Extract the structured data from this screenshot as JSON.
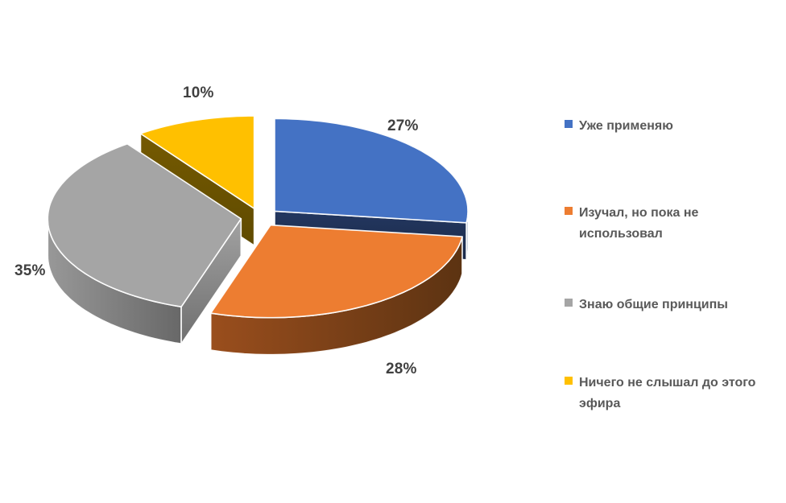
{
  "page": {
    "background": "#FFFFFF"
  },
  "chart_data": {
    "type": "pie",
    "variant": "3d-exploded",
    "title": "",
    "legend_position": "right",
    "start_angle_deg": 0,
    "direction": "clockwise",
    "total": 100,
    "label_color": "#404040",
    "legend_text_color": "#595959",
    "slices": [
      {
        "label": "Уже применяю",
        "value": 27,
        "pct": "27%",
        "color": "#4472C4",
        "wall": [
          "#35548E",
          "#2C4676"
        ],
        "cut": [
          "#233760",
          "#1B2A49"
        ]
      },
      {
        "label": "Изучал, но пока не использовал",
        "value": 28,
        "pct": "28%",
        "color": "#ED7D31",
        "wall": [
          "#9A4E1D",
          "#5C3312"
        ],
        "cut": [
          "#8A4A1A",
          "#6B3914"
        ]
      },
      {
        "label": "Знаю общие принципы",
        "value": 35,
        "pct": "35%",
        "color": "#A5A5A5",
        "wall": [
          "#989898",
          "#686868"
        ],
        "cut": [
          "#A2A2A2",
          "#6F6F6F"
        ]
      },
      {
        "label": "Ничего не слышал до этого эфира",
        "value": 10,
        "pct": "10%",
        "color": "#FFC000",
        "wall": [
          "#8A6B00",
          "#6B5300"
        ],
        "cut": [
          "#755A01",
          "#5F4A00"
        ]
      }
    ]
  }
}
